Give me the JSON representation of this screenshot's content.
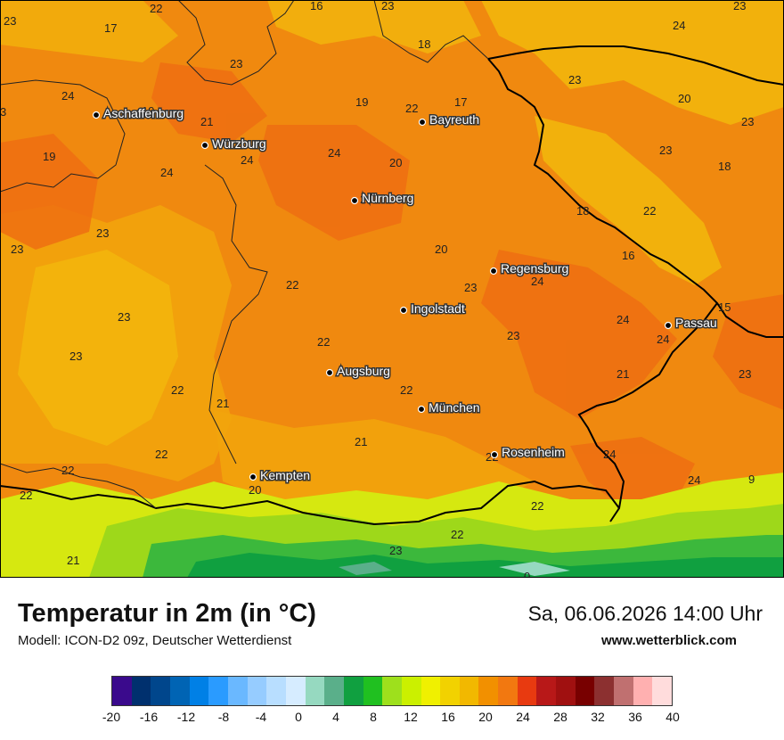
{
  "title": "Temperatur in 2m (in °C)",
  "model": "Modell: ICON-D2 09z, Deutscher Wetterdienst",
  "datetime": "Sa, 06.06.2026 14:00 Uhr",
  "website": "www.wetterblick.com",
  "cities": [
    {
      "id": "aschaffenburg",
      "name": "Aschaffenburg"
    },
    {
      "id": "wuerzburg",
      "name": "Würzburg"
    },
    {
      "id": "bayreuth",
      "name": "Bayreuth"
    },
    {
      "id": "nuernberg",
      "name": "Nürnberg"
    },
    {
      "id": "regensburg",
      "name": "Regensburg"
    },
    {
      "id": "ingolstadt",
      "name": "Ingolstadt"
    },
    {
      "id": "passau",
      "name": "Passau"
    },
    {
      "id": "augsburg",
      "name": "Augsburg"
    },
    {
      "id": "muenchen",
      "name": "München"
    },
    {
      "id": "rosenheim",
      "name": "Rosenheim"
    },
    {
      "id": "kempten",
      "name": "Kempten"
    }
  ],
  "temperatures": [
    "22",
    "16",
    "23",
    "23",
    "23",
    "17",
    "18",
    "24",
    "19",
    "21",
    "22",
    "17",
    "23",
    "23",
    "20",
    "23",
    "19",
    "24",
    "24",
    "20",
    "23",
    "18",
    "23",
    "23",
    "22",
    "18",
    "20",
    "16",
    "22",
    "24",
    "23",
    "15",
    "23",
    "24",
    "24",
    "23",
    "22",
    "23",
    "22",
    "21",
    "21",
    "22",
    "23",
    "21",
    "24",
    "22",
    "20",
    "22",
    "24",
    "9",
    "22",
    "22",
    "23",
    "0",
    "21",
    "3"
  ],
  "legend": {
    "colors": [
      "#3a0a8c",
      "#00306e",
      "#00468c",
      "#0064b4",
      "#0080e6",
      "#2a9bff",
      "#6ab8ff",
      "#96ccff",
      "#b8deff",
      "#d6ecff",
      "#96d9c0",
      "#5aaf8a",
      "#10a040",
      "#20c020",
      "#9ee01c",
      "#cbf000",
      "#f0f000",
      "#f2d200",
      "#f2b800",
      "#f29000",
      "#f27810",
      "#e83a10",
      "#b81818",
      "#a01010",
      "#780000",
      "#8c3030",
      "#c07070",
      "#ffb0b0",
      "#ffdcdc"
    ],
    "ticks": [
      "-20",
      "-16",
      "-12",
      "-8",
      "-4",
      "0",
      "4",
      "8",
      "12",
      "16",
      "20",
      "24",
      "28",
      "32",
      "36",
      "40"
    ]
  }
}
